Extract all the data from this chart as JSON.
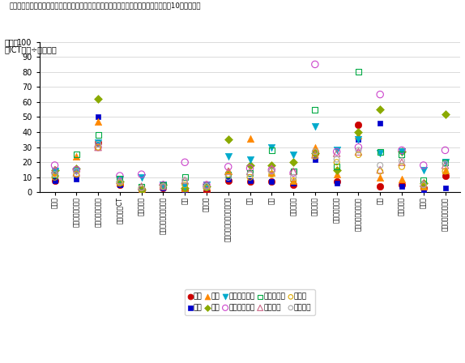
{
  "title_line1": "情報通信機器を除く製造業、卸売業、対個人サービス業を始めとする過半の産業では、10か国中下位",
  "ylabel_pct": "（％）",
  "ylabel_ict": "［ICT資本÷全資本］",
  "ylim": [
    0,
    100
  ],
  "categories": [
    "全産業",
    "情報通信機器製造",
    "情報通信サービス",
    "製造業除ーCT",
    "鉱業・採石",
    "電気・ガス・水道供給",
    "建設",
    "農林水産",
    "車両販売・修理・燃料小売",
    "卸売",
    "小売",
    "運輸・倉庫",
    "金融・保険",
    "対個人サービス",
    "機器貸・その他事業",
    "教育",
    "医療・福祉",
    "不動産",
    "その他公共サービス"
  ],
  "series": {
    "日本": {
      "color": "#cc0000",
      "marker": "o",
      "filled": true,
      "ms": 6,
      "values": [
        8,
        15,
        33,
        5,
        2,
        3,
        2,
        1,
        8,
        7,
        7,
        5,
        26,
        7,
        45,
        4,
        5,
        3,
        11
      ]
    },
    "韓国": {
      "color": "#0000cc",
      "marker": "s",
      "filled": true,
      "ms": 5,
      "values": [
        8,
        9,
        50,
        5,
        2,
        3,
        2,
        3,
        9,
        8,
        7,
        6,
        22,
        6,
        35,
        46,
        4,
        1,
        3
      ]
    },
    "米国": {
      "color": "#ff8800",
      "marker": "^",
      "filled": true,
      "ms": 6,
      "values": [
        13,
        24,
        47,
        7,
        2,
        5,
        3,
        4,
        14,
        36,
        13,
        8,
        30,
        12,
        38,
        10,
        9,
        4,
        15
      ]
    },
    "英国": {
      "color": "#8aaa00",
      "marker": "D",
      "filled": true,
      "ms": 5,
      "values": [
        15,
        16,
        62,
        7,
        2,
        5,
        3,
        4,
        35,
        18,
        18,
        20,
        26,
        15,
        40,
        55,
        27,
        6,
        52
      ]
    },
    "スウェーデン": {
      "color": "#00aacc",
      "marker": "v",
      "filled": true,
      "ms": 6,
      "values": [
        14,
        14,
        33,
        9,
        10,
        5,
        4,
        5,
        24,
        22,
        30,
        25,
        44,
        28,
        35,
        26,
        27,
        15,
        20
      ]
    },
    "フィンランド": {
      "color": "#cc44cc",
      "marker": "o",
      "filled": false,
      "ms": 6,
      "values": [
        18,
        15,
        30,
        11,
        12,
        5,
        20,
        5,
        17,
        16,
        15,
        13,
        85,
        27,
        30,
        65,
        28,
        18,
        28
      ]
    },
    "デンマーク": {
      "color": "#00aa44",
      "marker": "s",
      "filled": false,
      "ms": 5,
      "values": [
        12,
        25,
        38,
        9,
        4,
        5,
        10,
        4,
        12,
        13,
        28,
        14,
        55,
        17,
        80,
        27,
        25,
        8,
        20
      ]
    },
    "オランダ": {
      "color": "#cc6688",
      "marker": "^",
      "filled": false,
      "ms": 6,
      "values": [
        15,
        13,
        30,
        8,
        4,
        4,
        8,
        5,
        14,
        14,
        16,
        14,
        25,
        26,
        27,
        15,
        20,
        6,
        18
      ]
    },
    "ドイツ": {
      "color": "#ddaa00",
      "marker": "o",
      "filled": false,
      "ms": 5,
      "values": [
        10,
        12,
        30,
        6,
        3,
        4,
        5,
        3,
        12,
        10,
        12,
        8,
        24,
        20,
        25,
        14,
        17,
        4,
        14
      ]
    },
    "フランス": {
      "color": "#aaaaaa",
      "marker": "o",
      "filled": false,
      "ms": 5,
      "values": [
        12,
        14,
        32,
        7,
        3,
        4,
        8,
        4,
        10,
        12,
        14,
        10,
        27,
        22,
        28,
        18,
        21,
        5,
        19
      ]
    }
  },
  "legend_order": [
    "日本",
    "韓国",
    "米国",
    "英国",
    "スウェーデン",
    "フィンランド",
    "デンマーク",
    "オランダ",
    "ドイツ",
    "フランス"
  ]
}
